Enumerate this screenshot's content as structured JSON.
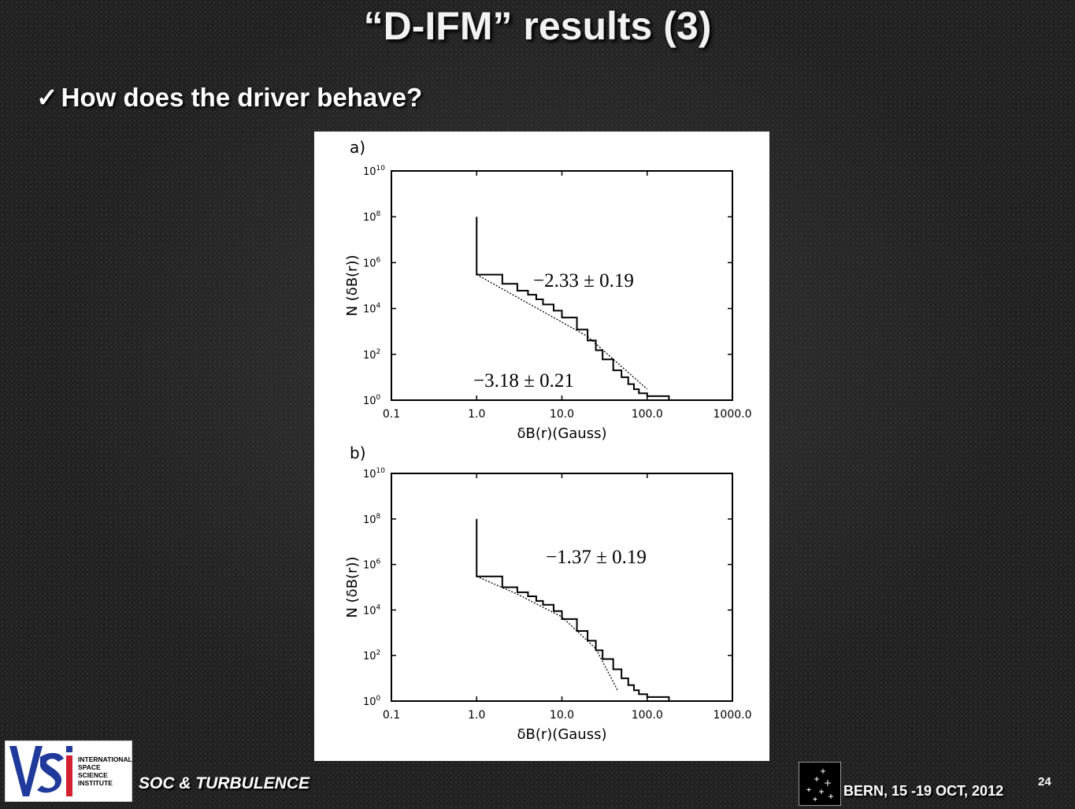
{
  "slide": {
    "title": "“D-IFM” results (3)",
    "bullet_mark": "✓",
    "bullet": "How does the driver behave?",
    "footer_left": "SOC & TURBULENCE",
    "footer_right": "BERN, 15 -19 OCT, 2012",
    "slide_number": "24"
  },
  "logo": {
    "lines": [
      "INTERNATIONAL",
      "SPACE",
      "SCIENCE",
      "INSTITUTE"
    ],
    "colors": {
      "blue": "#1f3a9a",
      "red": "#d2202f"
    }
  },
  "chart_data": [
    {
      "type": "line",
      "panel_label": "a)",
      "xlabel": "δB(r)(Gauss)",
      "ylabel": "N (δB(r))",
      "x_scale": "log",
      "y_scale": "log",
      "xlim": [
        0.1,
        1000.0
      ],
      "ylim": [
        1,
        10000000000.0
      ],
      "x_ticks": [
        "0.1",
        "1.0",
        "10.0",
        "100.0",
        "1000.0"
      ],
      "y_ticks": [
        {
          "base": "10",
          "exp": "0"
        },
        {
          "base": "10",
          "exp": "2"
        },
        {
          "base": "10",
          "exp": "4"
        },
        {
          "base": "10",
          "exp": "6"
        },
        {
          "base": "10",
          "exp": "8"
        },
        {
          "base": "10",
          "exp": "10"
        }
      ],
      "series": [
        {
          "style": "histogram-step",
          "x": [
            1.0,
            1.0,
            2.0,
            3.0,
            4.0,
            5.0,
            6.0,
            8.0,
            10.0,
            15.0,
            20.0,
            25.0,
            30.0,
            40.0,
            50.0,
            60.0,
            70.0,
            80.0,
            100.0,
            150.0,
            180.0
          ],
          "y": [
            100000000.0,
            300000.0,
            120000.0,
            60000.0,
            40000.0,
            25000.0,
            15000.0,
            8000.0,
            4000.0,
            1200.0,
            400,
            150,
            60,
            20,
            10,
            5,
            3,
            2,
            1.5,
            1.5,
            1
          ]
        },
        {
          "style": "dotted-fit",
          "x": [
            1.0,
            20.0
          ],
          "y": [
            300000.0,
            600.0
          ]
        },
        {
          "style": "dotted-fit",
          "x": [
            20.0,
            100.0
          ],
          "y": [
            600.0,
            3
          ]
        }
      ],
      "annotations": [
        "−2.33 ± 0.19",
        "−3.18 ± 0.21"
      ]
    },
    {
      "type": "line",
      "panel_label": "b)",
      "xlabel": "δB(r)(Gauss)",
      "ylabel": "N (δB(r))",
      "x_scale": "log",
      "y_scale": "log",
      "xlim": [
        0.1,
        1000.0
      ],
      "ylim": [
        1,
        10000000000.0
      ],
      "x_ticks": [
        "0.1",
        "1.0",
        "10.0",
        "100.0",
        "1000.0"
      ],
      "y_ticks": [
        {
          "base": "10",
          "exp": "0"
        },
        {
          "base": "10",
          "exp": "2"
        },
        {
          "base": "10",
          "exp": "4"
        },
        {
          "base": "10",
          "exp": "6"
        },
        {
          "base": "10",
          "exp": "8"
        },
        {
          "base": "10",
          "exp": "10"
        }
      ],
      "series": [
        {
          "style": "histogram-step",
          "x": [
            1.0,
            1.0,
            2.0,
            3.0,
            4.0,
            5.0,
            6.0,
            8.0,
            10.0,
            15.0,
            20.0,
            25.0,
            30.0,
            40.0,
            50.0,
            60.0,
            70.0,
            80.0,
            100.0,
            150.0,
            180.0
          ],
          "y": [
            100000000.0,
            300000.0,
            100000.0,
            60000.0,
            40000.0,
            25000.0,
            17000.0,
            9000.0,
            4000.0,
            1200.0,
            450,
            170,
            70,
            25,
            10,
            5,
            3,
            2,
            1.5,
            1.5,
            1
          ]
        },
        {
          "style": "dotted-fit",
          "x": [
            1.0,
            3.0,
            10.0,
            25.0,
            45.0
          ],
          "y": [
            300000.0,
            50000.0,
            5000.0,
            200,
            3
          ]
        }
      ],
      "annotations": [
        "−1.37 ± 0.19"
      ]
    }
  ]
}
